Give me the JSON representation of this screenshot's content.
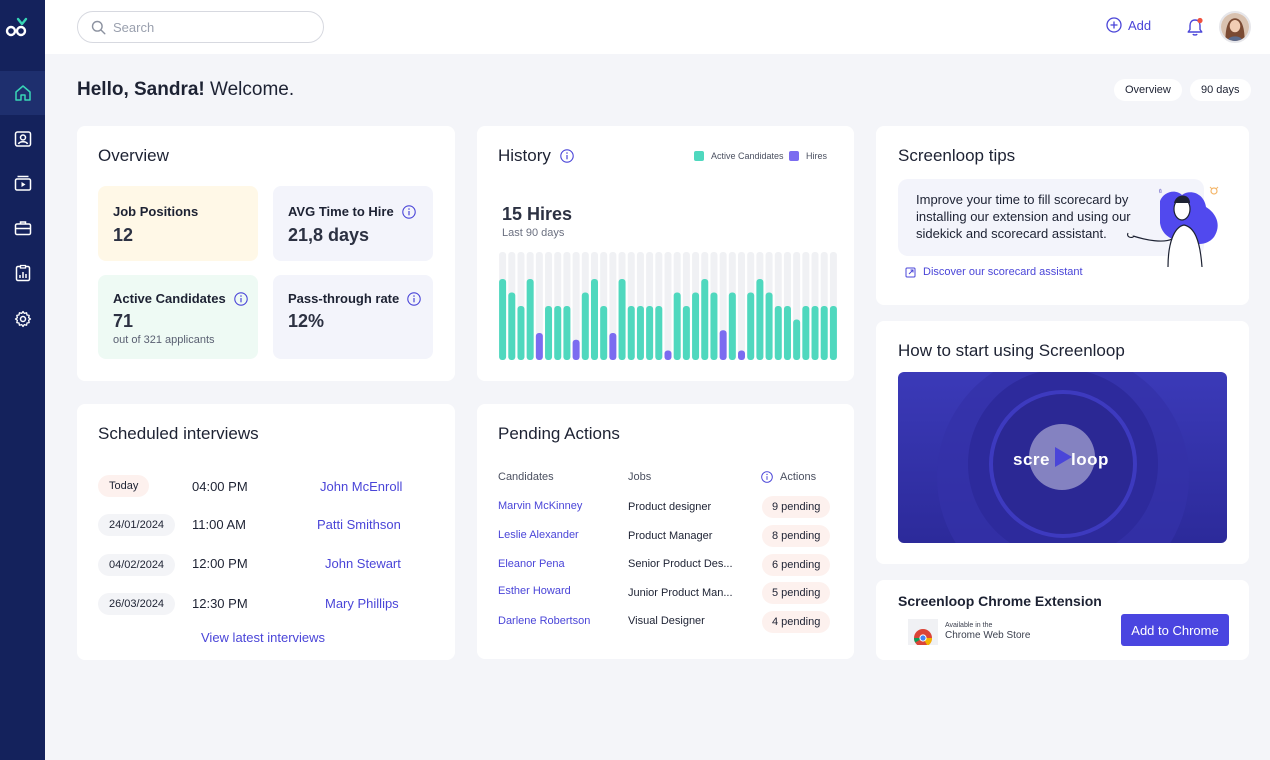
{
  "search": {
    "placeholder": "Search"
  },
  "header": {
    "add_label": "Add"
  },
  "greeting": {
    "name": "Hello, Sandra!",
    "welcome": " Welcome."
  },
  "filters": {
    "view": "Overview",
    "range": "90 days"
  },
  "overview": {
    "title": "Overview",
    "stats": [
      {
        "label": "Job Positions",
        "value": "12",
        "sub": ""
      },
      {
        "label": "AVG Time to Hire",
        "value": "21,8 days",
        "sub": ""
      },
      {
        "label": "Active Candidates",
        "value": "71",
        "sub": "out of 321 applicants"
      },
      {
        "label": "Pass-through rate",
        "value": "12%",
        "sub": ""
      }
    ]
  },
  "history": {
    "title": "History",
    "legend_active": "Active Candidates",
    "legend_hires": "Hires",
    "headline": "15 Hires",
    "subline": "Last 90 days",
    "colors": {
      "active": "#4fd8be",
      "hires": "#7b6cf0",
      "track": "#f0f1f4"
    }
  },
  "chart_data": {
    "type": "bar",
    "categories": [
      "1",
      "2",
      "3",
      "4",
      "5",
      "6",
      "7",
      "8",
      "9",
      "10",
      "11",
      "12",
      "13",
      "14",
      "15",
      "16",
      "17",
      "18",
      "19",
      "20",
      "21",
      "22",
      "23",
      "24",
      "25",
      "26",
      "27",
      "28",
      "29",
      "30",
      "31",
      "32",
      "33",
      "34",
      "35",
      "36",
      "37"
    ],
    "series": [
      {
        "name": "Active Candidates",
        "values": [
          6,
          5,
          4,
          6,
          5,
          4,
          4,
          4,
          4,
          5,
          6,
          4,
          5,
          6,
          4,
          4,
          4,
          4,
          4,
          5,
          4,
          5,
          6,
          5,
          6,
          5,
          4,
          5,
          6,
          5,
          4,
          4,
          3,
          4,
          4,
          4,
          4
        ]
      },
      {
        "name": "Hires",
        "values": [
          0,
          0,
          0,
          0,
          2,
          0,
          0,
          0,
          1.5,
          0,
          0,
          0,
          2,
          0,
          0,
          0,
          0,
          0,
          0.7,
          0,
          0,
          0,
          0,
          0,
          2.2,
          0,
          0.7,
          0,
          0,
          0,
          0,
          0,
          0,
          0,
          0,
          0,
          0
        ]
      }
    ],
    "ylim": [
      0,
      8
    ]
  },
  "scheduled": {
    "title": "Scheduled interviews",
    "rows": [
      {
        "date": "Today",
        "time": "04:00 PM",
        "name": "John McEnroll"
      },
      {
        "date": "24/01/2024",
        "time": "11:00 AM",
        "name": "Patti Smithson"
      },
      {
        "date": "04/02/2024",
        "time": "12:00 PM",
        "name": "John Stewart"
      },
      {
        "date": "26/03/2024",
        "time": "12:30 PM",
        "name": "Mary Phillips"
      }
    ],
    "view_all": "View latest interviews"
  },
  "pending": {
    "title": "Pending Actions",
    "headers": {
      "candidates": "Candidates",
      "jobs": "Jobs",
      "actions": "Actions"
    },
    "rows": [
      {
        "candidate": "Marvin McKinney",
        "job": "Product designer",
        "actions": "9 pending"
      },
      {
        "candidate": "Leslie Alexander",
        "job": "Product Manager",
        "actions": "8 pending"
      },
      {
        "candidate": "Eleanor Pena",
        "job": "Senior Product Des...",
        "actions": "6 pending"
      },
      {
        "candidate": "Esther Howard",
        "job": "Junior Product Man...",
        "actions": "5 pending"
      },
      {
        "candidate": "Darlene Robertson",
        "job": "Visual Designer",
        "actions": "4 pending"
      }
    ]
  },
  "tips": {
    "title": "Screenloop tips",
    "text": "Improve your time to fill scorecard by installing our extension and using our sidekick and scorecard assistant.",
    "link": "Discover our scorecard assistant"
  },
  "how_to": {
    "title": "How to start using Screenloop",
    "video_text_left": "scre",
    "video_text_right": "loop"
  },
  "extension": {
    "title": "Screenloop Chrome Extension",
    "store_small": "Available in the",
    "store_name": "Chrome Web Store",
    "button": "Add to Chrome"
  },
  "colors": {
    "sidebar": "#14225c",
    "accent": "#4a45d8",
    "background": "#f4f5f9"
  }
}
